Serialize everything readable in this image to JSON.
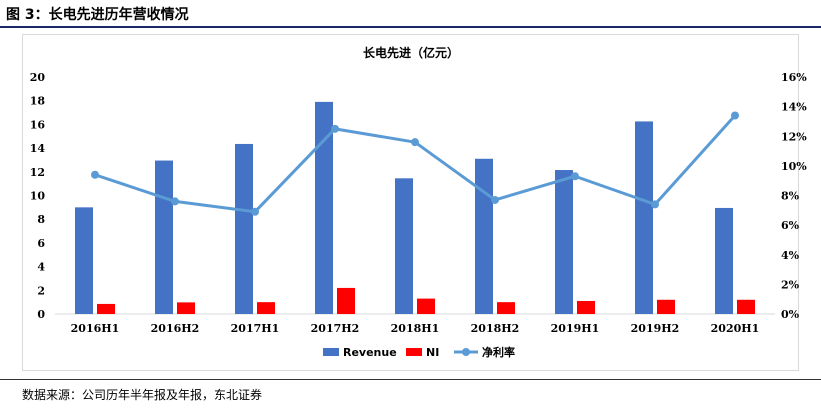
{
  "figure": {
    "title": "图 3：长电先进历年营收情况",
    "source": "数据来源：公司历年半年报及年报，东北证券"
  },
  "chart_data": {
    "type": "bar",
    "title": "长电先进（亿元）",
    "categories": [
      "2016H1",
      "2016H2",
      "2017H1",
      "2017H2",
      "2018H1",
      "2018H2",
      "2019H1",
      "2019H2",
      "2020H1"
    ],
    "series": [
      {
        "name": "Revenue",
        "type": "bar",
        "axis": "left",
        "color": "#4472c4",
        "values": [
          9.0,
          12.95,
          14.35,
          17.9,
          11.45,
          13.1,
          12.15,
          16.25,
          8.95
        ]
      },
      {
        "name": "NI",
        "type": "bar",
        "axis": "left",
        "color": "#ff0000",
        "values": [
          0.85,
          0.98,
          1.0,
          2.2,
          1.3,
          1.0,
          1.1,
          1.2,
          1.2
        ]
      },
      {
        "name": "净利率",
        "type": "line",
        "axis": "right",
        "color": "#5b9bd5",
        "values": [
          9.4,
          7.6,
          6.9,
          12.5,
          11.6,
          7.7,
          9.3,
          7.4,
          13.4
        ]
      }
    ],
    "ylim": [
      0,
      20
    ],
    "yticks": [
      "0",
      "2",
      "4",
      "6",
      "8",
      "10",
      "12",
      "14",
      "16",
      "18",
      "20"
    ],
    "y2lim": [
      0,
      16
    ],
    "y2ticks": [
      "0%",
      "2%",
      "4%",
      "6%",
      "8%",
      "10%",
      "12%",
      "14%",
      "16%"
    ],
    "grid": false,
    "legend": "bottom"
  }
}
